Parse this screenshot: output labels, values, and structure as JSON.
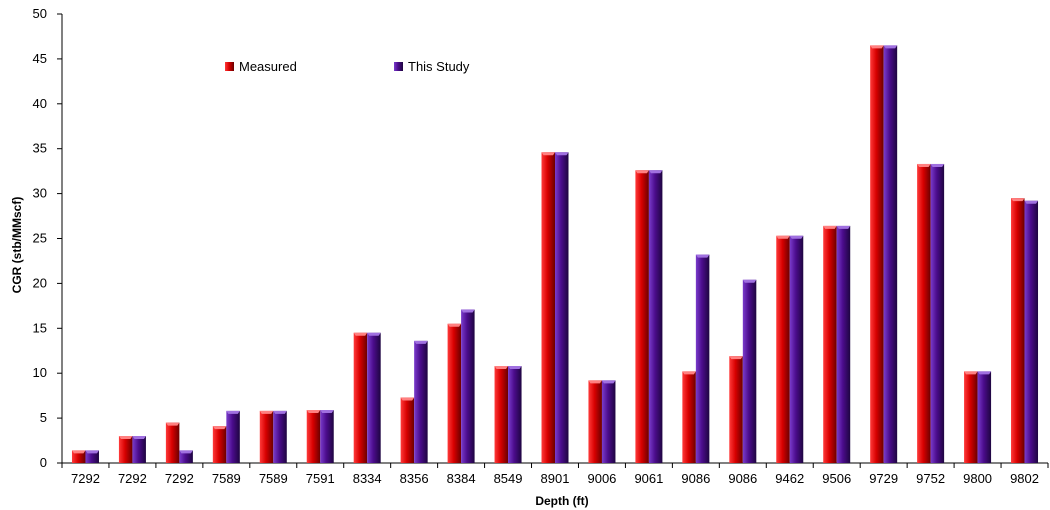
{
  "chart_data": {
    "type": "bar",
    "title": "",
    "xlabel": "Depth (ft)",
    "ylabel": "CGR (stb/MMscf)",
    "ylim": [
      0,
      50
    ],
    "yticks": [
      0,
      5,
      10,
      15,
      20,
      25,
      30,
      35,
      40,
      45,
      50
    ],
    "grid": false,
    "legend_position": "top-left",
    "categories": [
      "7292",
      "7292",
      "7292",
      "7589",
      "7589",
      "7591",
      "8334",
      "8356",
      "8384",
      "8549",
      "8901",
      "9006",
      "9061",
      "9086",
      "9086",
      "9462",
      "9506",
      "9729",
      "9752",
      "9800",
      "9802"
    ],
    "series": [
      {
        "name": "Measured",
        "color": "#c00000",
        "values": [
          1.4,
          3.0,
          4.5,
          4.1,
          5.8,
          5.9,
          14.5,
          7.3,
          15.5,
          10.8,
          34.6,
          9.2,
          32.6,
          10.2,
          11.9,
          25.3,
          26.4,
          46.5,
          33.3,
          10.2,
          29.5
        ]
      },
      {
        "name": "This Study",
        "color": "#4b0c8c",
        "values": [
          1.4,
          3.0,
          1.4,
          5.8,
          5.8,
          5.9,
          14.5,
          13.6,
          17.1,
          10.8,
          34.6,
          9.2,
          32.6,
          23.2,
          20.4,
          25.3,
          26.4,
          46.5,
          33.3,
          10.2,
          29.2
        ]
      }
    ]
  }
}
